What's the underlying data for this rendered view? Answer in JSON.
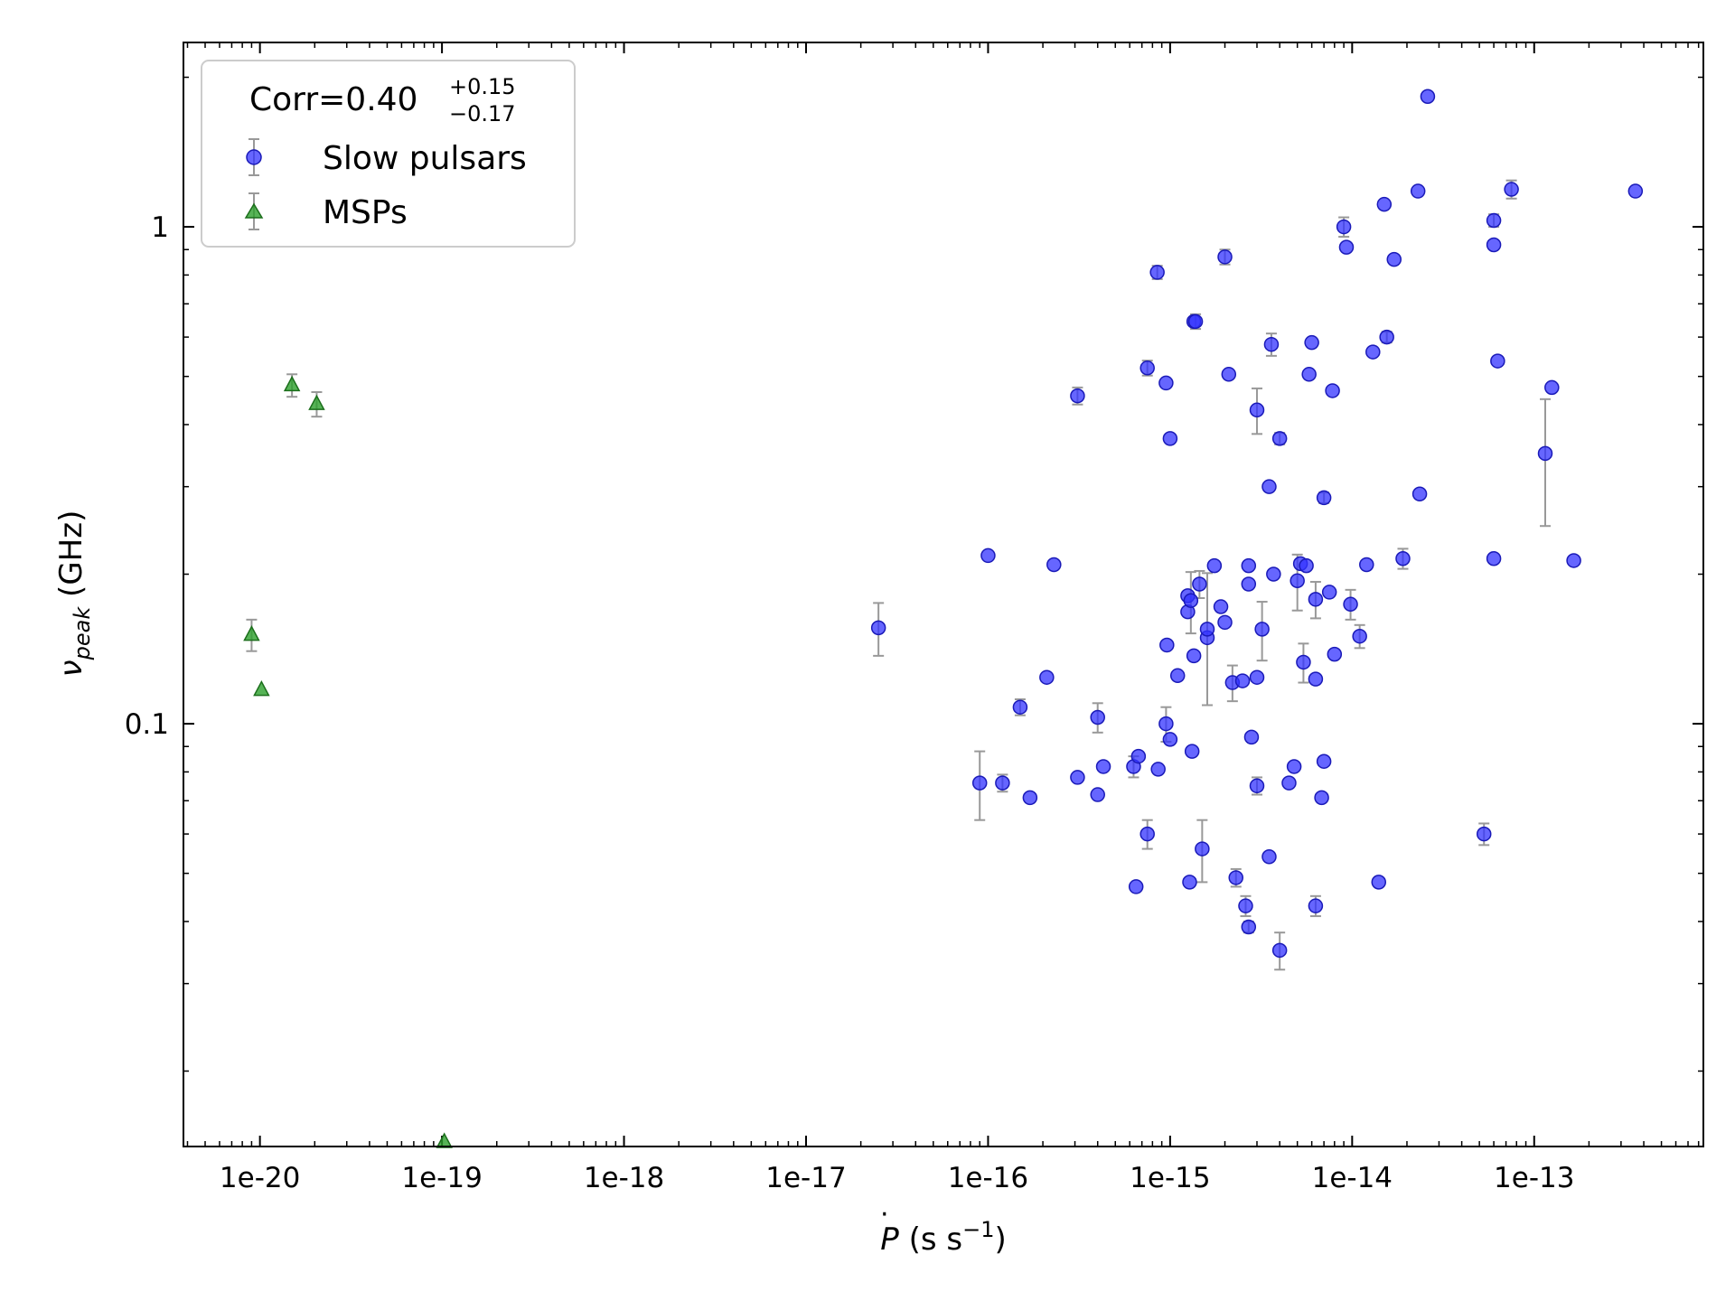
{
  "chart_data": {
    "type": "scatter",
    "x_scale": "log",
    "y_scale": "log",
    "xlim": [
      3.8e-21,
      8.5e-13
    ],
    "ylim": [
      0.0141,
      2.35
    ],
    "x_ticks": [
      1e-20,
      1e-19,
      1e-18,
      1e-17,
      1e-16,
      1e-15,
      1e-14,
      1e-13
    ],
    "x_tick_labels": [
      "1e-20",
      "1e-19",
      "1e-18",
      "1e-17",
      "1e-16",
      "1e-15",
      "1e-14",
      "1e-13"
    ],
    "y_ticks": [
      0.1,
      1
    ],
    "y_tick_labels": [
      "0.1",
      "1"
    ],
    "xlabel_parts": [
      "P",
      " (s s",
      "−1",
      ")"
    ],
    "ylabel_parts": [
      "ν",
      "peak",
      " (GHz)"
    ],
    "legend": {
      "placement": "top-left",
      "title_parts": [
        "Corr=0.40",
        "+0.15",
        "−0.17"
      ]
    },
    "series": [
      {
        "name": "Slow pulsars",
        "marker": "circle",
        "color": "#3333ff",
        "edge": "#1a1ab8",
        "points": [
          [
            2.5e-17,
            0.156,
            0.019
          ],
          [
            9e-17,
            0.076,
            0.012
          ],
          [
            1e-16,
            0.218,
            0
          ],
          [
            1.2e-16,
            0.076,
            0.003
          ],
          [
            1.5e-16,
            0.108,
            0.004
          ],
          [
            1.7e-16,
            0.071,
            0
          ],
          [
            2.1e-16,
            0.124,
            0
          ],
          [
            2.3e-16,
            0.209,
            0
          ],
          [
            3.1e-16,
            0.078,
            0
          ],
          [
            3.1e-16,
            0.457,
            0.018
          ],
          [
            4e-16,
            0.103,
            0.007
          ],
          [
            4e-16,
            0.072,
            0
          ],
          [
            4.3e-16,
            0.082,
            0
          ],
          [
            6.3e-16,
            0.082,
            0.004
          ],
          [
            6.5e-16,
            0.047,
            0
          ],
          [
            6.7e-16,
            0.086,
            0
          ],
          [
            7.5e-16,
            0.52,
            0.018
          ],
          [
            7.5e-16,
            0.06,
            0.004
          ],
          [
            8.5e-16,
            0.81,
            0.025
          ],
          [
            8.6e-16,
            0.081,
            0
          ],
          [
            9.5e-16,
            0.485,
            0
          ],
          [
            9.5e-16,
            0.1,
            0.008
          ],
          [
            9.6e-16,
            0.144,
            0
          ],
          [
            1e-15,
            0.375,
            0
          ],
          [
            1e-15,
            0.093,
            0
          ],
          [
            1.1e-15,
            0.125,
            0
          ],
          [
            1.25e-15,
            0.181,
            0
          ],
          [
            1.25e-15,
            0.168,
            0
          ],
          [
            1.28e-15,
            0.048,
            0
          ],
          [
            1.3e-15,
            0.177,
            0.025
          ],
          [
            1.32e-15,
            0.088,
            0
          ],
          [
            1.35e-15,
            0.137,
            0
          ],
          [
            1.35e-15,
            0.645,
            0
          ],
          [
            1.38e-15,
            0.645,
            0.022
          ],
          [
            1.45e-15,
            0.191,
            0.012
          ],
          [
            1.5e-15,
            0.056,
            0.008
          ],
          [
            1.6e-15,
            0.149,
            0
          ],
          [
            1.6e-15,
            0.155,
            0.046
          ],
          [
            1.75e-15,
            0.208,
            0
          ],
          [
            1.9e-15,
            0.172,
            0
          ],
          [
            2e-15,
            0.16,
            0
          ],
          [
            2e-15,
            0.87,
            0.03
          ],
          [
            2.1e-15,
            0.505,
            0
          ],
          [
            2.2e-15,
            0.121,
            0.01
          ],
          [
            2.3e-15,
            0.049,
            0.002
          ],
          [
            2.5e-15,
            0.122,
            0
          ],
          [
            2.6e-15,
            0.043,
            0.002
          ],
          [
            2.7e-15,
            0.191,
            0
          ],
          [
            2.7e-15,
            0.039,
            0.001
          ],
          [
            2.7e-15,
            0.208,
            0
          ],
          [
            2.8e-15,
            0.094,
            0
          ],
          [
            3e-15,
            0.075,
            0.003
          ],
          [
            3e-15,
            0.124,
            0
          ],
          [
            3e-15,
            0.428,
            0.045
          ],
          [
            3.2e-15,
            0.155,
            0.021
          ],
          [
            3.5e-15,
            0.3,
            0
          ],
          [
            3.5e-15,
            0.054,
            0
          ],
          [
            3.6e-15,
            0.58,
            0.03
          ],
          [
            3.7e-15,
            0.2,
            0
          ],
          [
            4e-15,
            0.035,
            0.003
          ],
          [
            4e-15,
            0.375,
            0.01
          ],
          [
            4.5e-15,
            0.076,
            0
          ],
          [
            4.8e-15,
            0.082,
            0
          ],
          [
            5e-15,
            0.194,
            0.025
          ],
          [
            5.2e-15,
            0.21,
            0
          ],
          [
            5.4e-15,
            0.133,
            0.012
          ],
          [
            5.6e-15,
            0.208,
            0
          ],
          [
            5.8e-15,
            0.505,
            0
          ],
          [
            6e-15,
            0.585,
            0
          ],
          [
            6.3e-15,
            0.178,
            0.015
          ],
          [
            6.3e-15,
            0.123,
            0
          ],
          [
            6.3e-15,
            0.043,
            0.002
          ],
          [
            6.8e-15,
            0.071,
            0
          ],
          [
            7e-15,
            0.285,
            0.007
          ],
          [
            7e-15,
            0.084,
            0
          ],
          [
            7.5e-15,
            0.184,
            0
          ],
          [
            7.8e-15,
            0.468,
            0
          ],
          [
            8e-15,
            0.138,
            0
          ],
          [
            9e-15,
            1.0,
            0.045
          ],
          [
            9.3e-15,
            0.91,
            0
          ],
          [
            9.8e-15,
            0.174,
            0.012
          ],
          [
            1.1e-14,
            0.15,
            0.008
          ],
          [
            1.2e-14,
            0.209,
            0
          ],
          [
            1.3e-14,
            0.56,
            0
          ],
          [
            1.4e-14,
            0.048,
            0
          ],
          [
            1.5e-14,
            1.11,
            0
          ],
          [
            1.55e-14,
            0.6,
            0.015
          ],
          [
            1.7e-14,
            0.86,
            0
          ],
          [
            1.9e-14,
            0.215,
            0.01
          ],
          [
            2.3e-14,
            1.18,
            0
          ],
          [
            2.35e-14,
            0.29,
            0
          ],
          [
            2.6e-14,
            1.83,
            0
          ],
          [
            5.3e-14,
            0.06,
            0.003
          ],
          [
            6e-14,
            0.215,
            0
          ],
          [
            6e-14,
            0.92,
            0
          ],
          [
            6e-14,
            1.03,
            0.03
          ],
          [
            6.3e-14,
            0.537,
            0
          ],
          [
            7.5e-14,
            1.19,
            0.05
          ],
          [
            1.15e-13,
            0.35,
            0.1
          ],
          [
            1.25e-13,
            0.475,
            0
          ],
          [
            1.65e-13,
            0.213,
            0
          ],
          [
            3.6e-13,
            1.18,
            0
          ]
        ]
      },
      {
        "name": "MSPs",
        "marker": "triangle",
        "color": "#2ca02c",
        "edge": "#1b6e1b",
        "points": [
          [
            9e-21,
            0.151,
            0.011
          ],
          [
            1.02e-20,
            0.117,
            0
          ],
          [
            1.5e-20,
            0.48,
            0.025
          ],
          [
            2.05e-20,
            0.44,
            0.025
          ],
          [
            1.03e-19,
            0.0144,
            0
          ]
        ]
      }
    ]
  }
}
